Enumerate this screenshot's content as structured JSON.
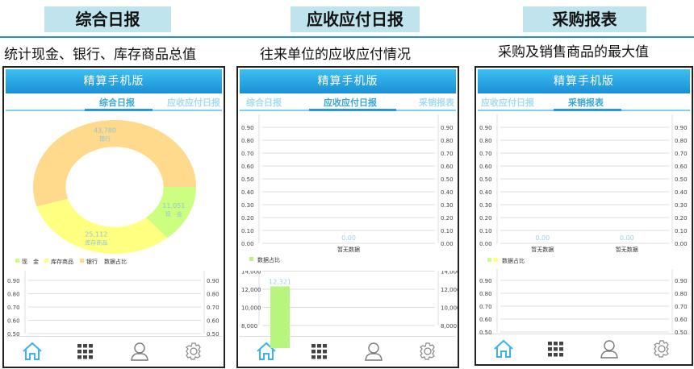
{
  "sections": [
    {
      "heading": "综合日报",
      "description": "统计现金、银行、库存商品总值"
    },
    {
      "heading": "应收应付日报",
      "description": "往来单位的应收应付情况"
    },
    {
      "heading": "采购报表",
      "description": "采购及销售商品的最大值"
    }
  ],
  "app_title": "精算手机版",
  "tabs": [
    "综合日报",
    "应收应付日报",
    "采销报表"
  ],
  "nav_icons": [
    "home-icon",
    "grid-icon",
    "user-icon",
    "settings-icon"
  ],
  "colors": {
    "accent": "#2b9ad4",
    "cash": "#ccff80",
    "inventory": "#ffff80",
    "bank": "#ffd98c",
    "bar": "#b8f57e"
  },
  "chart_data": [
    {
      "type": "pie",
      "panel": "综合日报",
      "donut": true,
      "slices": [
        {
          "label": "现　金",
          "value": 11051,
          "display": "11,051"
        },
        {
          "label": "库存商品",
          "value": 25112,
          "display": "25,112"
        },
        {
          "label": "银行",
          "value": 43780,
          "display": "43,780"
        }
      ],
      "legend": [
        "现　金",
        "库存商品",
        "银行"
      ],
      "legend_title": "数据占比"
    },
    {
      "type": "bar",
      "panel": "综合日报 lower",
      "yticks": [
        "0.50",
        "0.60",
        "0.70",
        "0.80",
        "0.90"
      ],
      "categories": [],
      "values": []
    },
    {
      "type": "bar",
      "panel": "应收应付日报 upper",
      "categories": [
        "暂无数据"
      ],
      "values": [
        0
      ],
      "value_labels": [
        "0.00"
      ],
      "yticks": [
        "0.00",
        "0.10",
        "0.20",
        "0.30",
        "0.40",
        "0.50",
        "0.60",
        "0.70",
        "0.80",
        "0.90"
      ],
      "legend": [
        "数据占比"
      ]
    },
    {
      "type": "bar",
      "panel": "应收应付日报 lower",
      "categories": [
        ""
      ],
      "values": [
        12321
      ],
      "value_labels": [
        "12,321"
      ],
      "yticks": [
        "8,000",
        "10,000",
        "12,000",
        "14,000"
      ]
    },
    {
      "type": "bar",
      "panel": "采销报表 upper",
      "categories": [
        "暂无数据",
        "暂无数据"
      ],
      "values": [
        0,
        0
      ],
      "value_labels": [
        "0.00",
        "0.00"
      ],
      "yticks": [
        "0.00",
        "0.10",
        "0.20",
        "0.30",
        "0.40",
        "0.50",
        "0.60",
        "0.70",
        "0.80",
        "0.90"
      ],
      "legend": [
        "数据占比"
      ]
    },
    {
      "type": "bar",
      "panel": "采销报表 lower",
      "yticks": [
        "0.50",
        "0.60",
        "0.70",
        "0.80",
        "0.90"
      ],
      "categories": [],
      "values": []
    }
  ]
}
